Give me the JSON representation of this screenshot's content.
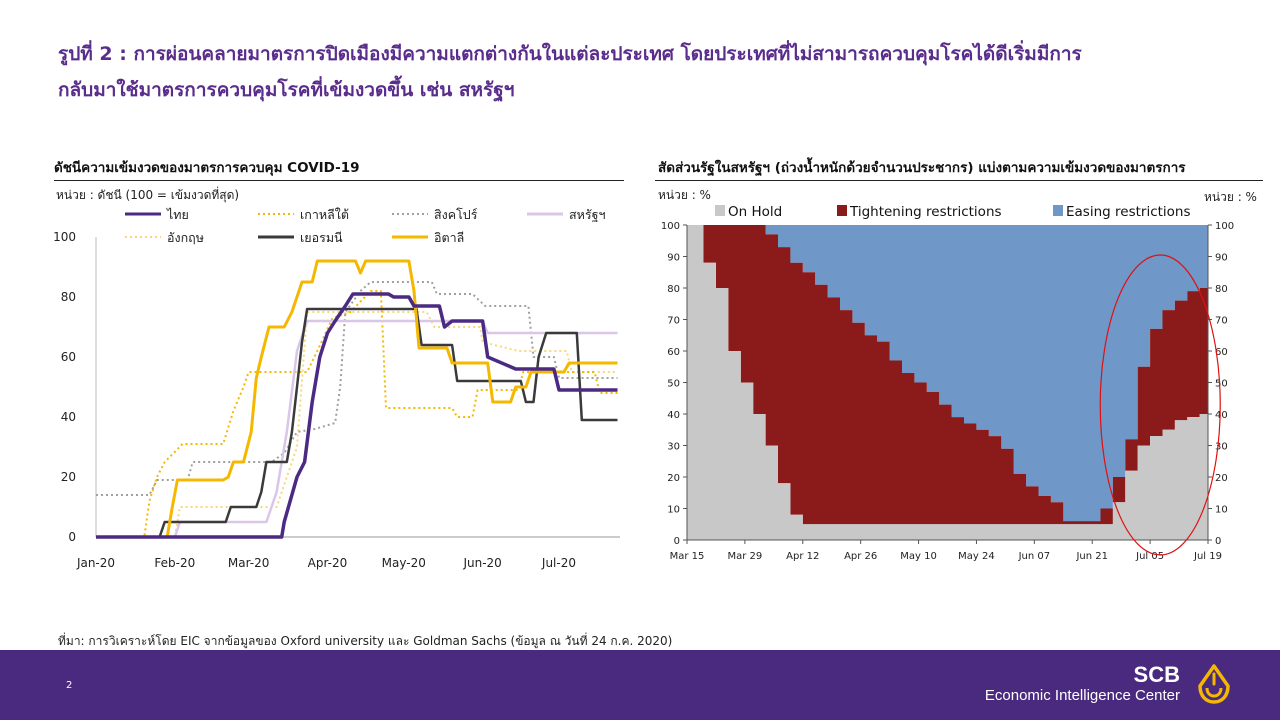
{
  "title_line1": "รูปที่ 2 : การผ่อนคลายมาตรการปิดเมืองมีความแตกต่างกันในแต่ละประเทศ โดยประเทศที่ไม่สามารถควบคุมโรคได้ดีเริ่มมีการ",
  "title_line2": "กลับมาใช้มาตรการควบคุมโรคที่เข้มงวดขึ้น เช่น สหรัฐฯ",
  "left_title": "ดัชนีความเข้มงวดของมาตรการควบคุม COVID-19",
  "left_unit": "หน่วย : ดัชนี (100 = เข้มงวดที่สุด)",
  "right_title": "สัดส่วนรัฐในสหรัฐฯ (ถ่วงน้ำหนักด้วยจำนวนประชากร) แบ่งตามความเข้มงวดของมาตรการ",
  "right_unit_left": "หน่วย : %",
  "right_unit_right": "หน่วย : %",
  "source": "ที่มา: การวิเคราะห์โดย EIC จากข้อมูลของ Oxford university และ Goldman Sachs (ข้อมูล ณ วันที่ 24 ก.ค. 2020)",
  "page_number": "2",
  "brand_main": "SCB",
  "brand_sub": "Economic Intelligence Center",
  "colors": {
    "brand_purple": "#4a2a7e",
    "title_purple": "#5a2d8c",
    "gold": "#f5b800"
  },
  "chart_data": [
    {
      "type": "line",
      "title": "ดัชนีความเข้มงวดของมาตรการควบคุม COVID-19",
      "ylabel": "หน่วย : ดัชนี (100 = เข้มงวดที่สุด)",
      "ylim": [
        0,
        100
      ],
      "yticks": [
        0,
        20,
        40,
        60,
        80,
        100
      ],
      "xlim": [
        "2020-01-01",
        "2020-07-25"
      ],
      "xticks": [
        {
          "date": "2020-01-01",
          "label": "Jan-20"
        },
        {
          "date": "2020-02-01",
          "label": "Feb-20"
        },
        {
          "date": "2020-03-01",
          "label": "Mar-20"
        },
        {
          "date": "2020-04-01",
          "label": "Apr-20"
        },
        {
          "date": "2020-05-01",
          "label": "May-20"
        },
        {
          "date": "2020-06-01",
          "label": "Jun-20"
        },
        {
          "date": "2020-07-01",
          "label": "Jul-20"
        }
      ],
      "legend_position": "top",
      "series": [
        {
          "name": "ไทย",
          "color": "#4b2a84",
          "dash": "solid",
          "width": 3.5,
          "points": [
            [
              "2020-01-01",
              0
            ],
            [
              "2020-03-14",
              0
            ],
            [
              "2020-03-15",
              5
            ],
            [
              "2020-03-20",
              20
            ],
            [
              "2020-03-23",
              25
            ],
            [
              "2020-03-26",
              45
            ],
            [
              "2020-03-29",
              60
            ],
            [
              "2020-04-01",
              68
            ],
            [
              "2020-04-04",
              72
            ],
            [
              "2020-04-08",
              77
            ],
            [
              "2020-04-11",
              81
            ],
            [
              "2020-04-25",
              81
            ],
            [
              "2020-04-27",
              80
            ],
            [
              "2020-05-03",
              80
            ],
            [
              "2020-05-05",
              77
            ],
            [
              "2020-05-15",
              77
            ],
            [
              "2020-05-17",
              70
            ],
            [
              "2020-05-20",
              72
            ],
            [
              "2020-06-01",
              72
            ],
            [
              "2020-06-03",
              60
            ],
            [
              "2020-06-14",
              56
            ],
            [
              "2020-06-29",
              56
            ],
            [
              "2020-07-01",
              49
            ],
            [
              "2020-07-24",
              49
            ]
          ]
        },
        {
          "name": "เกาหลีใต้",
          "color": "#f5b800",
          "dash": "dot",
          "width": 2,
          "points": [
            [
              "2020-01-01",
              0
            ],
            [
              "2020-01-20",
              0
            ],
            [
              "2020-01-22",
              12
            ],
            [
              "2020-01-25",
              20
            ],
            [
              "2020-01-28",
              25
            ],
            [
              "2020-02-04",
              31
            ],
            [
              "2020-02-20",
              31
            ],
            [
              "2020-02-24",
              42
            ],
            [
              "2020-02-28",
              50
            ],
            [
              "2020-03-01",
              55
            ],
            [
              "2020-03-24",
              55
            ],
            [
              "2020-03-28",
              62
            ],
            [
              "2020-04-03",
              73
            ],
            [
              "2020-04-10",
              75
            ],
            [
              "2020-04-18",
              82
            ],
            [
              "2020-04-22",
              82
            ],
            [
              "2020-04-24",
              43
            ],
            [
              "2020-05-20",
              43
            ],
            [
              "2020-05-22",
              40
            ],
            [
              "2020-05-28",
              40
            ],
            [
              "2020-05-30",
              49
            ],
            [
              "2020-06-15",
              49
            ],
            [
              "2020-06-17",
              55
            ],
            [
              "2020-07-15",
              55
            ],
            [
              "2020-07-17",
              48
            ],
            [
              "2020-07-24",
              48
            ]
          ]
        },
        {
          "name": "สิงคโปร์",
          "color": "#a0a0a0",
          "dash": "dot",
          "width": 2,
          "points": [
            [
              "2020-01-01",
              14
            ],
            [
              "2020-01-22",
              14
            ],
            [
              "2020-01-25",
              19
            ],
            [
              "2020-02-06",
              19
            ],
            [
              "2020-02-08",
              25
            ],
            [
              "2020-03-10",
              25
            ],
            [
              "2020-03-15",
              28
            ],
            [
              "2020-03-20",
              35
            ],
            [
              "2020-03-27",
              36
            ],
            [
              "2020-04-04",
              38
            ],
            [
              "2020-04-06",
              50
            ],
            [
              "2020-04-08",
              75
            ],
            [
              "2020-04-14",
              82
            ],
            [
              "2020-04-18",
              85
            ],
            [
              "2020-05-12",
              85
            ],
            [
              "2020-05-14",
              81
            ],
            [
              "2020-05-28",
              81
            ],
            [
              "2020-06-02",
              77
            ],
            [
              "2020-06-19",
              77
            ],
            [
              "2020-06-21",
              60
            ],
            [
              "2020-06-29",
              60
            ],
            [
              "2020-07-01",
              53
            ],
            [
              "2020-07-24",
              53
            ]
          ]
        },
        {
          "name": "สหรัฐฯ",
          "color": "#d9c6e8",
          "dash": "solid",
          "width": 2.5,
          "points": [
            [
              "2020-01-01",
              0
            ],
            [
              "2020-02-01",
              0
            ],
            [
              "2020-02-03",
              5
            ],
            [
              "2020-03-08",
              5
            ],
            [
              "2020-03-12",
              15
            ],
            [
              "2020-03-16",
              35
            ],
            [
              "2020-03-20",
              62
            ],
            [
              "2020-03-24",
              72
            ],
            [
              "2020-05-15",
              72
            ],
            [
              "2020-06-01",
              72
            ],
            [
              "2020-06-03",
              68
            ],
            [
              "2020-07-24",
              68
            ]
          ]
        },
        {
          "name": "อังกฤษ",
          "color": "#f8d77a",
          "dash": "dot",
          "width": 2,
          "points": [
            [
              "2020-01-01",
              0
            ],
            [
              "2020-02-01",
              0
            ],
            [
              "2020-02-03",
              10
            ],
            [
              "2020-03-12",
              10
            ],
            [
              "2020-03-16",
              20
            ],
            [
              "2020-03-20",
              30
            ],
            [
              "2020-03-24",
              75
            ],
            [
              "2020-05-10",
              75
            ],
            [
              "2020-05-13",
              70
            ],
            [
              "2020-05-31",
              70
            ],
            [
              "2020-06-01",
              65
            ],
            [
              "2020-06-15",
              62
            ],
            [
              "2020-07-04",
              62
            ],
            [
              "2020-07-06",
              55
            ],
            [
              "2020-07-24",
              55
            ]
          ]
        },
        {
          "name": "เยอรมนี",
          "color": "#3a3a3a",
          "dash": "solid",
          "width": 2.5,
          "points": [
            [
              "2020-01-01",
              0
            ],
            [
              "2020-01-26",
              0
            ],
            [
              "2020-01-28",
              5
            ],
            [
              "2020-02-01",
              5
            ],
            [
              "2020-02-03",
              5
            ],
            [
              "2020-02-21",
              5
            ],
            [
              "2020-02-23",
              10
            ],
            [
              "2020-03-04",
              10
            ],
            [
              "2020-03-06",
              15
            ],
            [
              "2020-03-08",
              25
            ],
            [
              "2020-03-16",
              25
            ],
            [
              "2020-03-18",
              35
            ],
            [
              "2020-03-20",
              50
            ],
            [
              "2020-03-22",
              65
            ],
            [
              "2020-03-24",
              76
            ],
            [
              "2020-05-06",
              76
            ],
            [
              "2020-05-08",
              64
            ],
            [
              "2020-05-20",
              64
            ],
            [
              "2020-05-22",
              52
            ],
            [
              "2020-06-16",
              52
            ],
            [
              "2020-06-18",
              45
            ],
            [
              "2020-06-21",
              45
            ],
            [
              "2020-06-23",
              60
            ],
            [
              "2020-06-26",
              68
            ],
            [
              "2020-07-08",
              68
            ],
            [
              "2020-07-10",
              39
            ],
            [
              "2020-07-24",
              39
            ]
          ]
        },
        {
          "name": "อิตาลี",
          "color": "#f5b800",
          "dash": "solid",
          "width": 3,
          "points": [
            [
              "2020-01-01",
              0
            ],
            [
              "2020-01-29",
              0
            ],
            [
              "2020-01-31",
              10
            ],
            [
              "2020-02-02",
              19
            ],
            [
              "2020-02-20",
              19
            ],
            [
              "2020-02-22",
              20
            ],
            [
              "2020-02-24",
              25
            ],
            [
              "2020-02-28",
              25
            ],
            [
              "2020-03-02",
              35
            ],
            [
              "2020-03-04",
              53
            ],
            [
              "2020-03-06",
              60
            ],
            [
              "2020-03-09",
              70
            ],
            [
              "2020-03-15",
              70
            ],
            [
              "2020-03-18",
              75
            ],
            [
              "2020-03-22",
              85
            ],
            [
              "2020-03-26",
              85
            ],
            [
              "2020-03-28",
              92
            ],
            [
              "2020-04-12",
              92
            ],
            [
              "2020-04-14",
              88
            ],
            [
              "2020-04-16",
              92
            ],
            [
              "2020-05-03",
              92
            ],
            [
              "2020-05-05",
              82
            ],
            [
              "2020-05-07",
              63
            ],
            [
              "2020-05-18",
              63
            ],
            [
              "2020-05-20",
              58
            ],
            [
              "2020-06-03",
              58
            ],
            [
              "2020-06-05",
              45
            ],
            [
              "2020-06-12",
              45
            ],
            [
              "2020-06-14",
              50
            ],
            [
              "2020-06-18",
              50
            ],
            [
              "2020-06-20",
              55
            ],
            [
              "2020-07-03",
              55
            ],
            [
              "2020-07-05",
              58
            ],
            [
              "2020-07-24",
              58
            ]
          ]
        }
      ]
    },
    {
      "type": "area",
      "title": "สัดส่วนรัฐในสหรัฐฯ (ถ่วงน้ำหนักด้วยจำนวนประชากร) แบ่งตามความเข้มงวดของมาตรการ",
      "ylabel": "หน่วย : %",
      "ylim": [
        0,
        100
      ],
      "yticks": [
        0,
        10,
        20,
        30,
        40,
        50,
        60,
        70,
        80,
        90,
        100
      ],
      "xlim": [
        "2020-03-15",
        "2020-07-19"
      ],
      "xtick_labels": [
        "Mar 15",
        "Mar 29",
        "Apr 12",
        "Apr 26",
        "May 10",
        "May 24",
        "Jun 07",
        "Jun 21",
        "Jul 05",
        "Jul 19"
      ],
      "xticks": [
        "2020-03-15",
        "2020-03-29",
        "2020-04-12",
        "2020-04-26",
        "2020-05-10",
        "2020-05-24",
        "2020-06-07",
        "2020-06-21",
        "2020-07-05",
        "2020-07-19"
      ],
      "grid": false,
      "legend_position": "top",
      "annotation": "red ellipse highlighting late June - July",
      "series": [
        {
          "name": "On Hold",
          "color": "#c8c8c8"
        },
        {
          "name": "Tightening restrictions",
          "color": "#8b1a1a"
        },
        {
          "name": "Easing restrictions",
          "color": "#6f97c8"
        }
      ],
      "dates": [
        "2020-03-15",
        "2020-03-19",
        "2020-03-22",
        "2020-03-25",
        "2020-03-28",
        "2020-03-31",
        "2020-04-03",
        "2020-04-06",
        "2020-04-09",
        "2020-04-12",
        "2020-04-15",
        "2020-04-18",
        "2020-04-21",
        "2020-04-24",
        "2020-04-27",
        "2020-04-30",
        "2020-05-03",
        "2020-05-06",
        "2020-05-09",
        "2020-05-12",
        "2020-05-15",
        "2020-05-18",
        "2020-05-21",
        "2020-05-24",
        "2020-05-27",
        "2020-05-30",
        "2020-06-02",
        "2020-06-05",
        "2020-06-08",
        "2020-06-11",
        "2020-06-14",
        "2020-06-17",
        "2020-06-20",
        "2020-06-23",
        "2020-06-26",
        "2020-06-29",
        "2020-07-02",
        "2020-07-05",
        "2020-07-08",
        "2020-07-11",
        "2020-07-14",
        "2020-07-17",
        "2020-07-19"
      ],
      "on_hold": [
        100,
        88,
        80,
        60,
        50,
        40,
        30,
        18,
        8,
        5,
        5,
        5,
        5,
        5,
        5,
        5,
        5,
        5,
        5,
        5,
        5,
        5,
        5,
        5,
        5,
        5,
        5,
        5,
        5,
        5,
        5,
        5,
        5,
        5,
        12,
        22,
        30,
        33,
        35,
        38,
        39,
        40,
        40
      ],
      "tightening": [
        0,
        12,
        20,
        40,
        50,
        60,
        67,
        75,
        80,
        80,
        76,
        72,
        68,
        64,
        60,
        58,
        52,
        48,
        45,
        42,
        38,
        34,
        32,
        30,
        28,
        24,
        16,
        12,
        9,
        7,
        1,
        1,
        1,
        5,
        8,
        10,
        25,
        34,
        38,
        38,
        40,
        40,
        41
      ],
      "easing": [
        0,
        0,
        0,
        0,
        0,
        0,
        3,
        7,
        12,
        15,
        19,
        23,
        27,
        31,
        35,
        37,
        43,
        47,
        50,
        53,
        57,
        61,
        63,
        65,
        67,
        71,
        79,
        83,
        86,
        88,
        94,
        94,
        94,
        90,
        80,
        68,
        45,
        33,
        27,
        24,
        21,
        20,
        19
      ]
    }
  ]
}
